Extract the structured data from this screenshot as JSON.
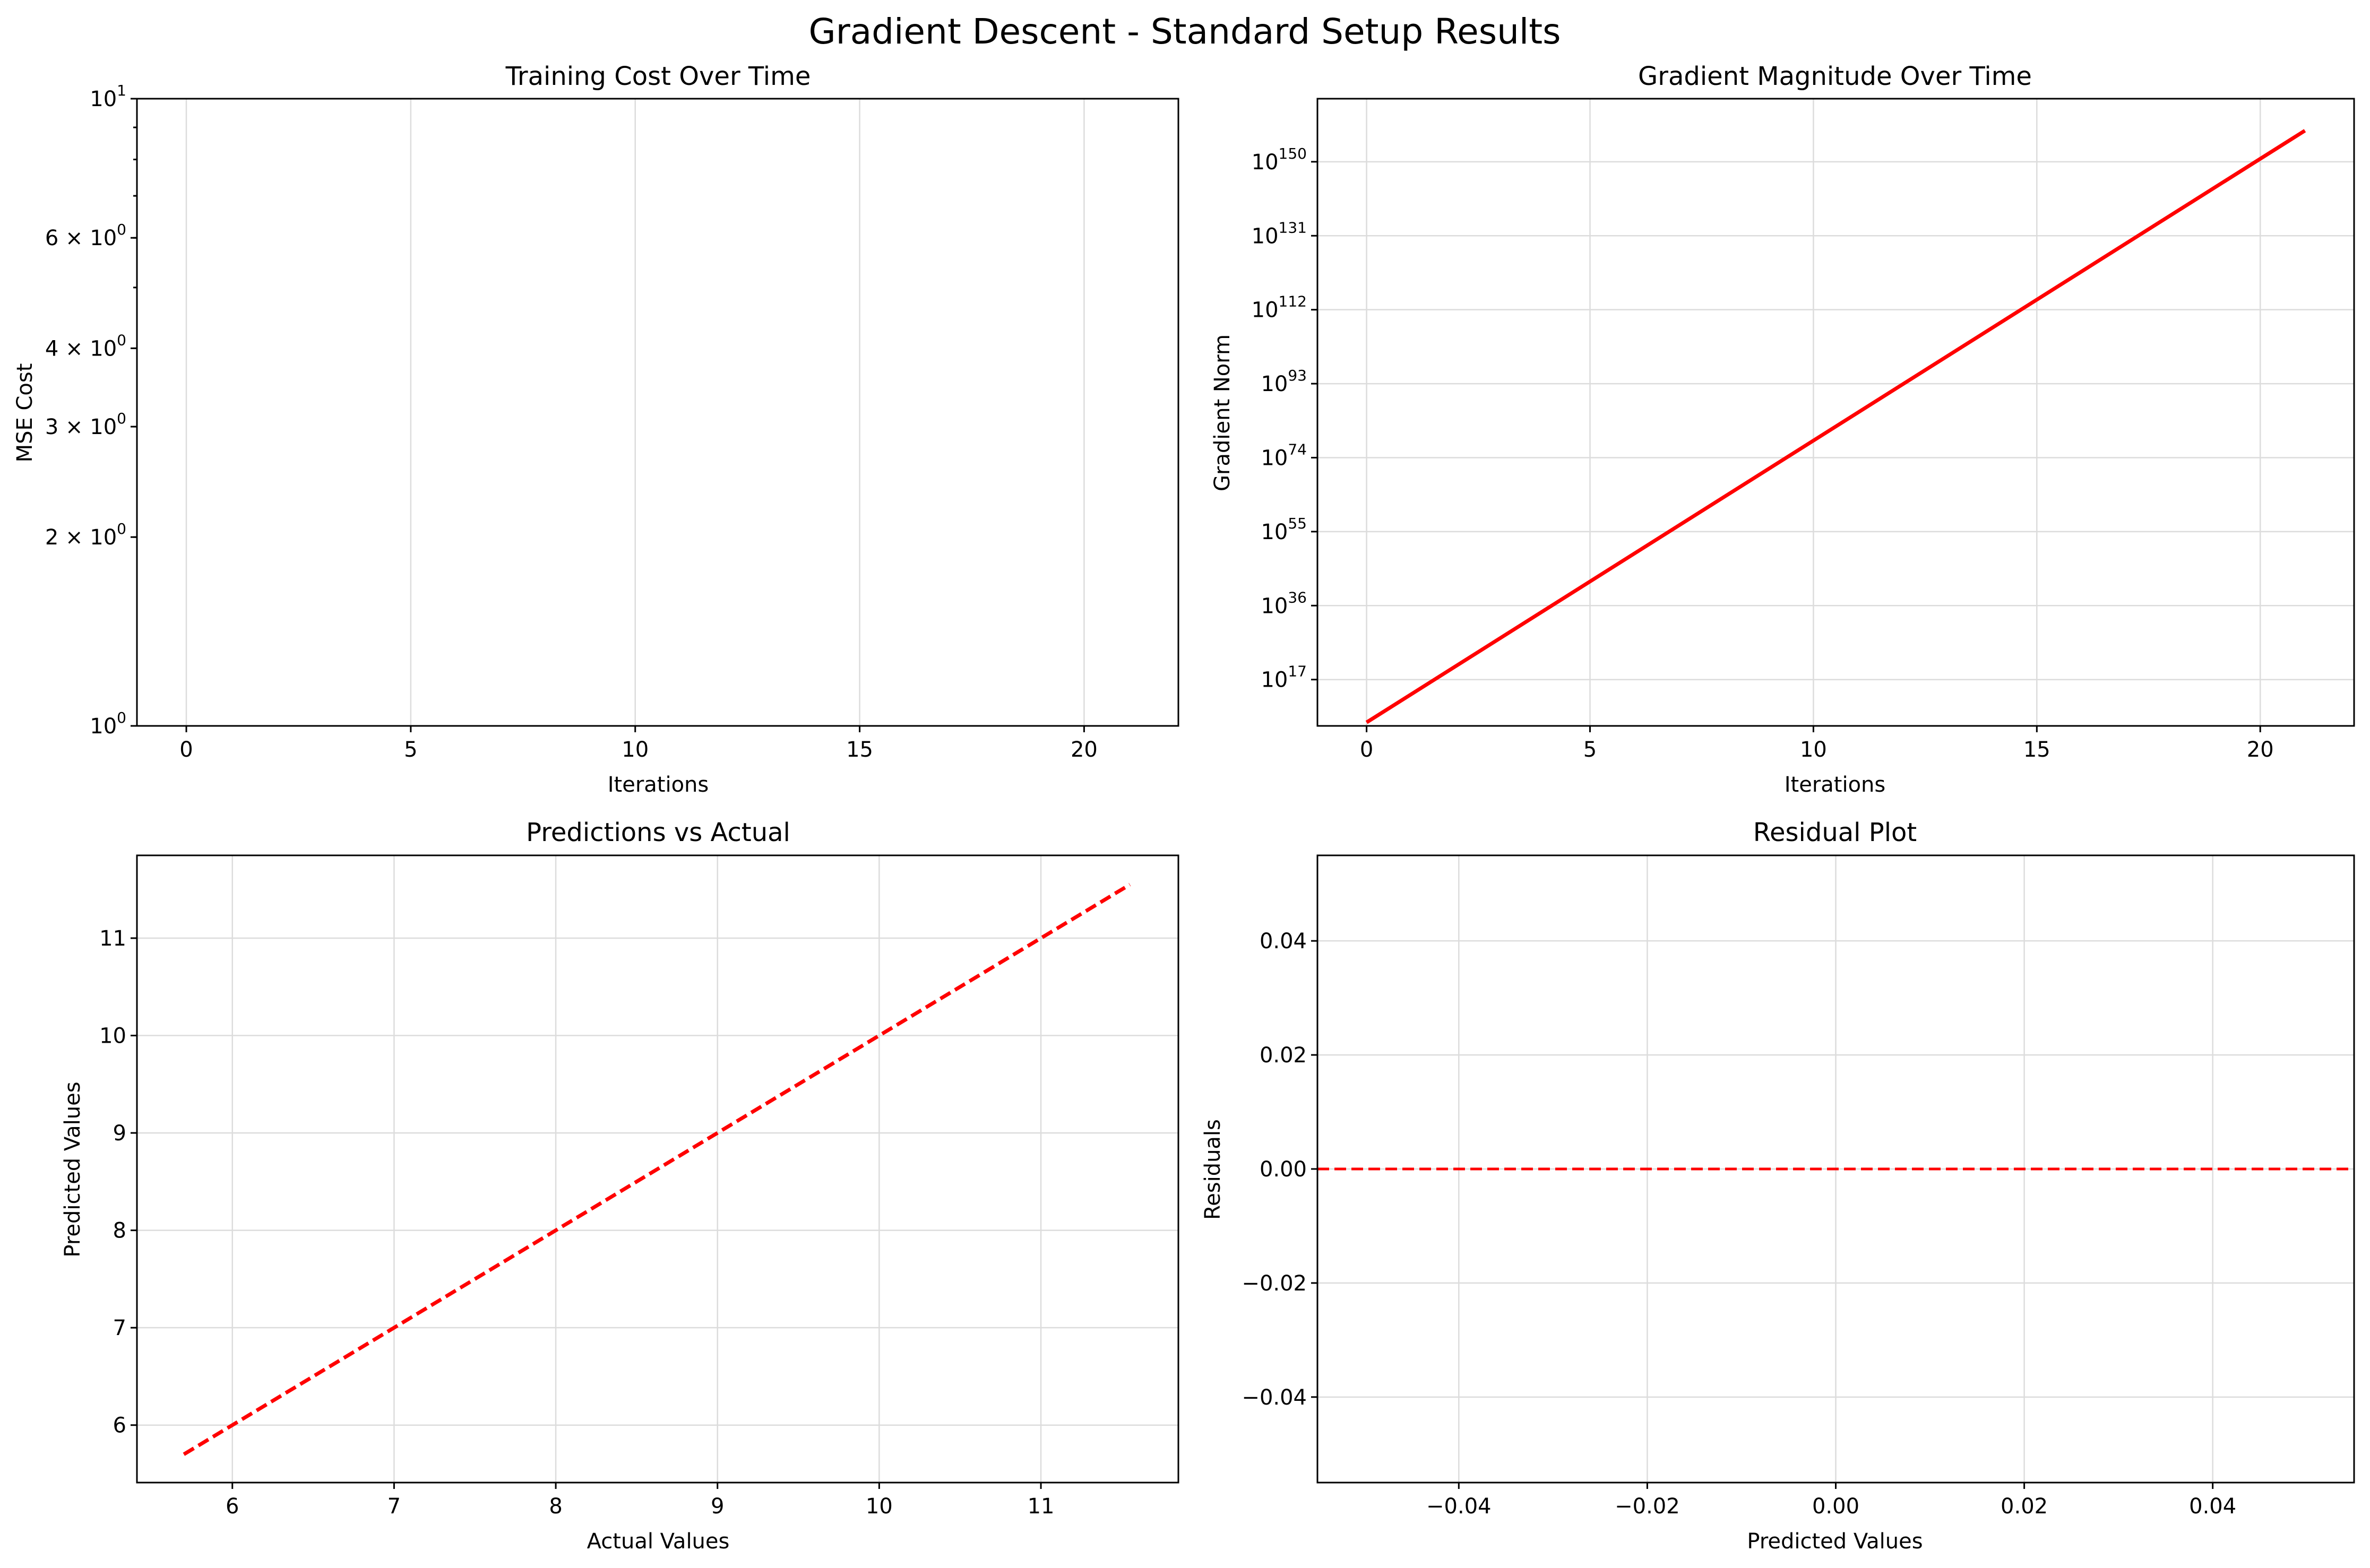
{
  "figure": {
    "title": "Gradient Descent - Standard Setup Results"
  },
  "chart_data": [
    {
      "type": "line",
      "title": "Training Cost Over Time",
      "xlabel": "Iterations",
      "ylabel": "MSE Cost",
      "xlim": [
        -1.1,
        22.1
      ],
      "ylim": [
        1,
        10
      ],
      "yscale": "log",
      "xticks": [
        0,
        5,
        10,
        15,
        20
      ],
      "xtick_labels": [
        "0",
        "5",
        "10",
        "15",
        "20"
      ],
      "yticks": [
        1,
        2,
        3,
        4,
        6,
        10
      ],
      "ytick_labels": [
        {
          "base": "10",
          "exp": "0"
        },
        {
          "base": "2 × 10",
          "exp": "0"
        },
        {
          "base": "3 × 10",
          "exp": "0"
        },
        {
          "base": "4 × 10",
          "exp": "0"
        },
        {
          "base": "6 × 10",
          "exp": "0"
        },
        {
          "base": "10",
          "exp": "1"
        }
      ],
      "grid": true,
      "series": []
    },
    {
      "type": "line",
      "title": "Gradient Magnitude Over Time",
      "xlabel": "Iterations",
      "ylabel": "Gradient Norm",
      "xlim": [
        -1.1,
        22.1
      ],
      "ylim_log10": [
        5.1,
        166.2
      ],
      "yscale": "log",
      "xticks": [
        0,
        5,
        10,
        15,
        20
      ],
      "xtick_labels": [
        "0",
        "5",
        "10",
        "15",
        "20"
      ],
      "yticks_log10": [
        17,
        36,
        55,
        74,
        93,
        112,
        131,
        150
      ],
      "ytick_labels": [
        {
          "base": "10",
          "exp": "17"
        },
        {
          "base": "10",
          "exp": "36"
        },
        {
          "base": "10",
          "exp": "55"
        },
        {
          "base": "10",
          "exp": "74"
        },
        {
          "base": "10",
          "exp": "93"
        },
        {
          "base": "10",
          "exp": "112"
        },
        {
          "base": "10",
          "exp": "131"
        },
        {
          "base": "10",
          "exp": "150"
        }
      ],
      "grid": true,
      "series": [
        {
          "color": "#ff0000",
          "style": "solid",
          "x": [
            0,
            21
          ],
          "y_log10": [
            6,
            158
          ]
        }
      ]
    },
    {
      "type": "line",
      "title": "Predictions vs Actual",
      "xlabel": "Actual Values",
      "ylabel": "Predicted Values",
      "xlim": [
        5.41,
        11.85
      ],
      "ylim": [
        5.41,
        11.85
      ],
      "xticks": [
        6,
        7,
        8,
        9,
        10,
        11
      ],
      "xtick_labels": [
        "6",
        "7",
        "8",
        "9",
        "10",
        "11"
      ],
      "yticks": [
        6,
        7,
        8,
        9,
        10,
        11
      ],
      "ytick_labels": [
        "6",
        "7",
        "8",
        "9",
        "10",
        "11"
      ],
      "grid": true,
      "series": [
        {
          "color": "#ff0000",
          "style": "dashed",
          "x": [
            5.7,
            11.55
          ],
          "y": [
            5.7,
            11.55
          ]
        }
      ]
    },
    {
      "type": "line",
      "title": "Residual Plot",
      "xlabel": "Predicted Values",
      "ylabel": "Residuals",
      "xlim": [
        -0.055,
        0.055
      ],
      "ylim": [
        -0.055,
        0.055
      ],
      "xticks": [
        -0.04,
        -0.02,
        0.0,
        0.02,
        0.04
      ],
      "xtick_labels": [
        "−0.04",
        "−0.02",
        "0.00",
        "0.02",
        "0.04"
      ],
      "yticks": [
        -0.04,
        -0.02,
        0.0,
        0.02,
        0.04
      ],
      "ytick_labels": [
        "−0.04",
        "−0.02",
        "0.00",
        "0.02",
        "0.04"
      ],
      "grid": true,
      "hlines": [
        {
          "y": 0,
          "color": "#ff0000",
          "style": "dashed"
        }
      ],
      "series": []
    }
  ]
}
